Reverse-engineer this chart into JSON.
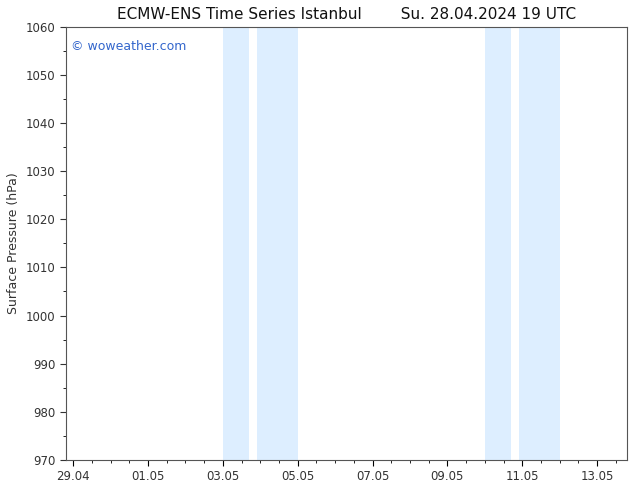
{
  "title_left": "ECMW-ENS Time Series Istanbul",
  "title_right": "Su. 28.04.2024 19 UTC",
  "ylabel": "Surface Pressure (hPa)",
  "ylim": [
    970,
    1060
  ],
  "yticks": [
    970,
    980,
    990,
    1000,
    1010,
    1020,
    1030,
    1040,
    1050,
    1060
  ],
  "xlim_start": -0.2,
  "xlim_end": 14.8,
  "xtick_positions": [
    0,
    2,
    4,
    6,
    8,
    10,
    12,
    14
  ],
  "xtick_labels": [
    "29.04",
    "01.05",
    "03.05",
    "05.05",
    "07.05",
    "09.05",
    "11.05",
    "13.05"
  ],
  "shade_bands": [
    {
      "xmin": 4.0,
      "xmax": 4.7
    },
    {
      "xmin": 4.9,
      "xmax": 6.0
    },
    {
      "xmin": 11.0,
      "xmax": 11.7
    },
    {
      "xmin": 11.9,
      "xmax": 13.0
    }
  ],
  "shade_color": "#ddeeff",
  "watermark_text": "© woweather.com",
  "watermark_color": "#3366cc",
  "background_color": "#ffffff",
  "plot_bg_color": "#ffffff",
  "tick_color": "#333333",
  "title_fontsize": 11,
  "label_fontsize": 9,
  "tick_fontsize": 8.5,
  "watermark_fontsize": 9
}
